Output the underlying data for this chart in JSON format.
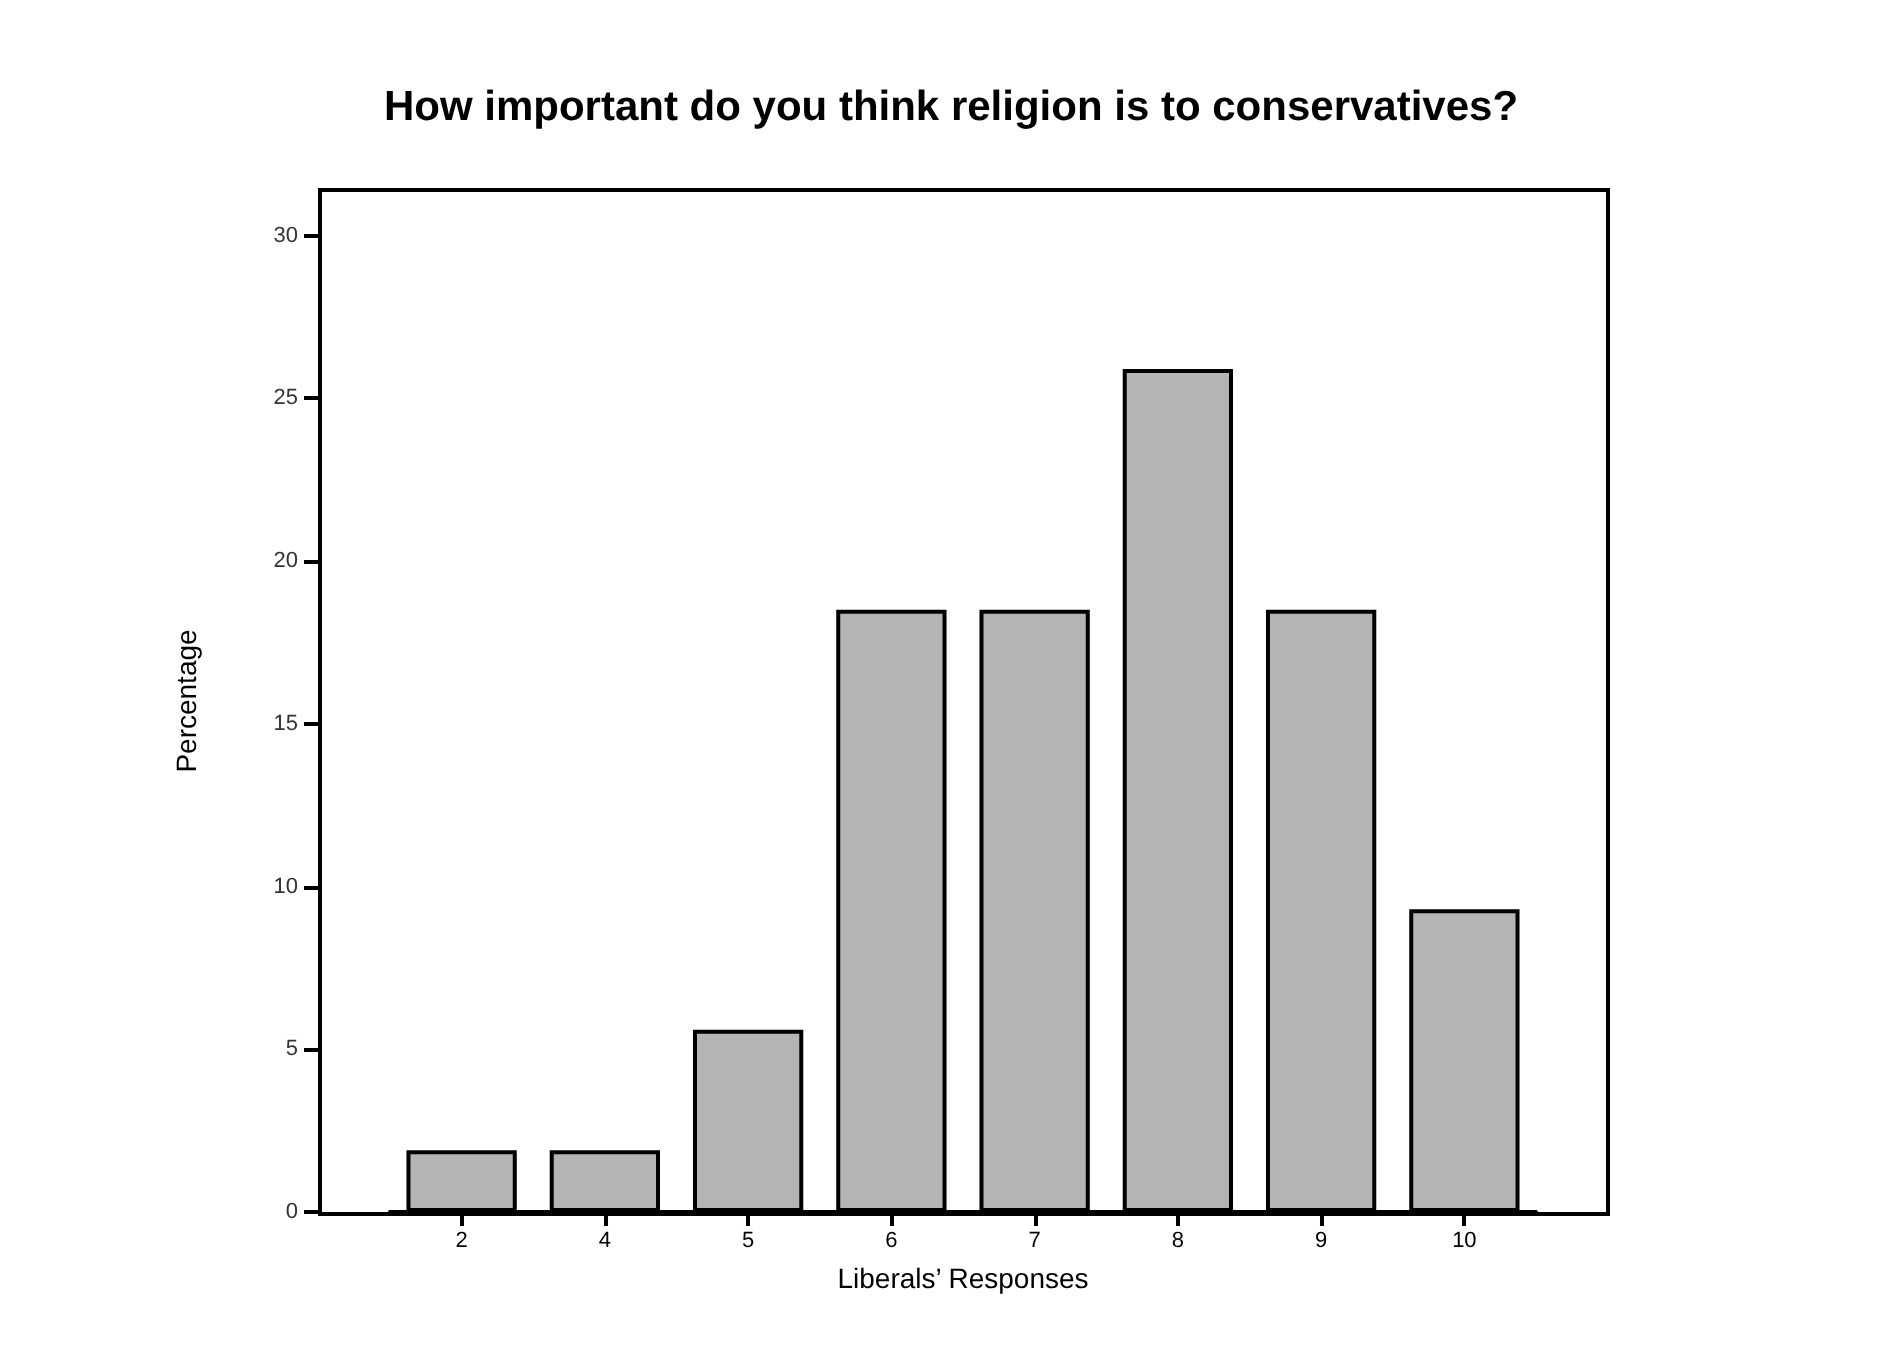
{
  "chart_data": {
    "type": "bar",
    "title": "How important do you think religion is to conservatives?",
    "xlabel": "Liberals’ Responses",
    "ylabel": "Percentage",
    "categories": [
      "2",
      "4",
      "5",
      "6",
      "7",
      "8",
      "9",
      "10"
    ],
    "values": [
      1.9,
      1.9,
      5.6,
      18.5,
      18.5,
      25.9,
      18.5,
      9.3
    ],
    "color": "#b4b4b4",
    "ylim": [
      0,
      31.4
    ],
    "yticks": [
      0,
      5,
      10,
      15,
      20,
      25,
      30
    ],
    "grid": false
  }
}
